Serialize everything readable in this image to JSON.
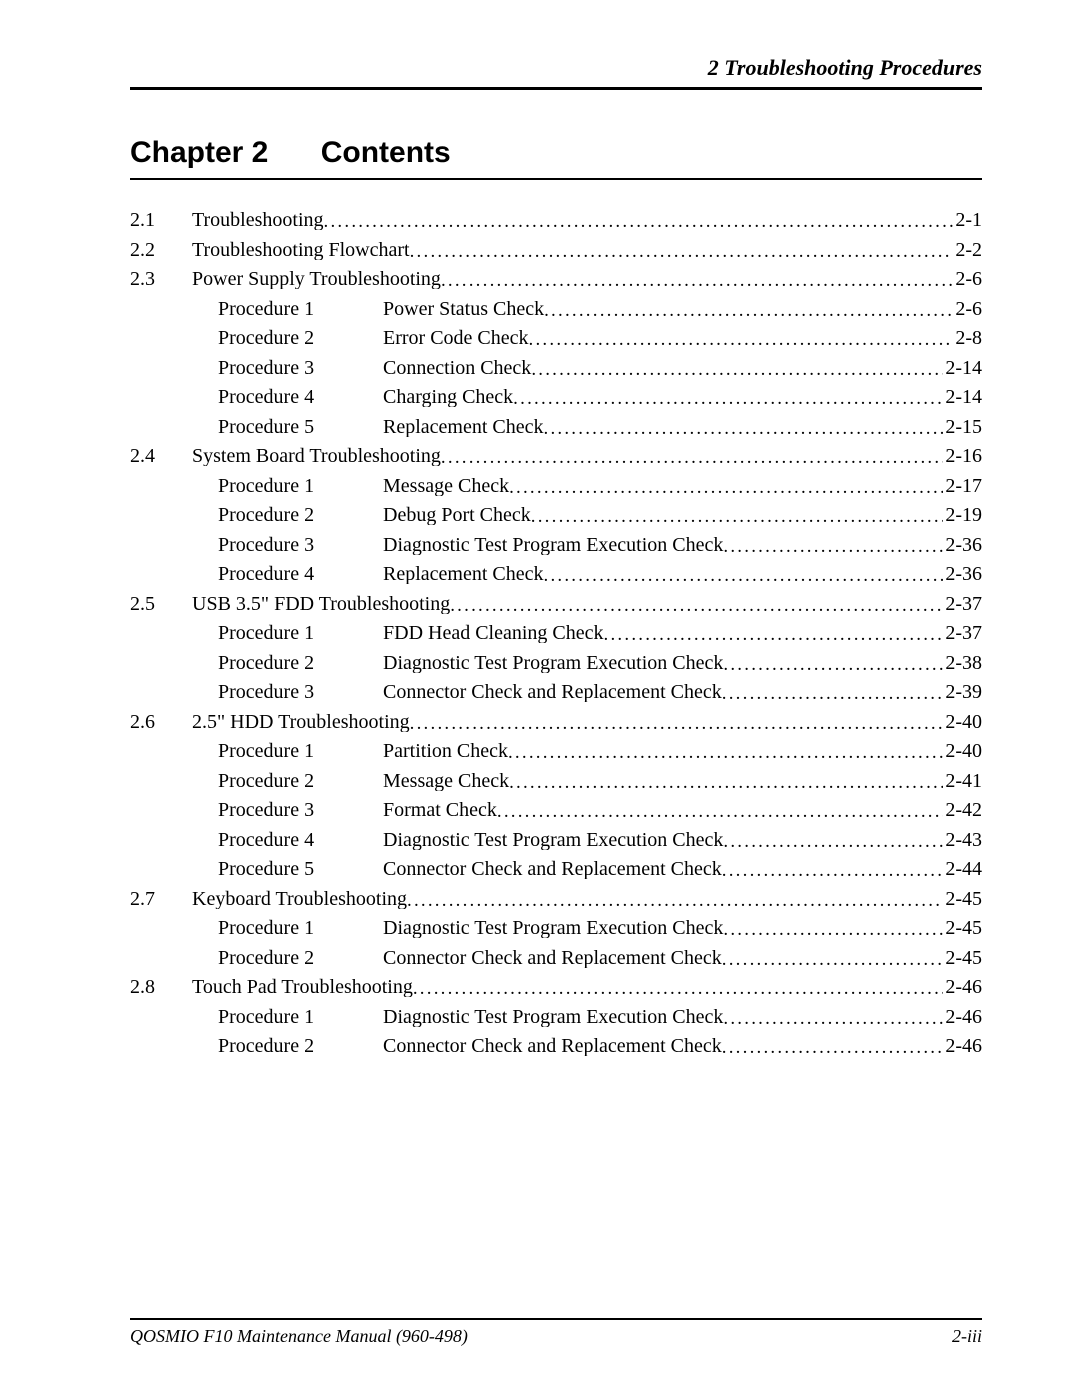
{
  "header_text": "2 Troubleshooting Procedures",
  "chapter_label": "Chapter 2",
  "contents_label": "Contents",
  "footer_left": "QOSMIO F10  Maintenance Manual (960-498)",
  "footer_right": "2-iii",
  "leader_dots": "........................................................................................................................................................",
  "toc": [
    {
      "type": "section",
      "num": "2.1",
      "title": "Troubleshooting",
      "page": "2-1"
    },
    {
      "type": "section",
      "num": "2.2",
      "title": "Troubleshooting Flowchart",
      "page": "2-2"
    },
    {
      "type": "section",
      "num": "2.3",
      "title": "Power Supply Troubleshooting",
      "page": "2-6"
    },
    {
      "type": "proc",
      "proc": "Procedure 1",
      "title": "Power Status Check",
      "page": "2-6"
    },
    {
      "type": "proc",
      "proc": "Procedure 2",
      "title": "Error Code Check",
      "page": "2-8"
    },
    {
      "type": "proc",
      "proc": "Procedure 3",
      "title": "Connection Check",
      "page": "2-14"
    },
    {
      "type": "proc",
      "proc": "Procedure 4",
      "title": "Charging Check",
      "page": "2-14"
    },
    {
      "type": "proc",
      "proc": "Procedure 5",
      "title": "Replacement Check",
      "page": "2-15"
    },
    {
      "type": "section",
      "num": "2.4",
      "title": "System Board Troubleshooting",
      "page": "2-16"
    },
    {
      "type": "proc",
      "proc": "Procedure 1",
      "title": "Message Check",
      "page": "2-17"
    },
    {
      "type": "proc",
      "proc": "Procedure 2",
      "title": "Debug Port Check",
      "page": "2-19"
    },
    {
      "type": "proc",
      "proc": "Procedure 3",
      "title": "Diagnostic Test Program Execution Check",
      "page": "2-36"
    },
    {
      "type": "proc",
      "proc": "Procedure 4",
      "title": "Replacement Check",
      "page": "2-36"
    },
    {
      "type": "section",
      "num": "2.5",
      "title": "USB 3.5\" FDD Troubleshooting",
      "page": "2-37"
    },
    {
      "type": "proc",
      "proc": "Procedure 1",
      "title": "FDD Head Cleaning Check",
      "page": "2-37"
    },
    {
      "type": "proc",
      "proc": "Procedure 2",
      "title": "Diagnostic Test Program Execution Check",
      "page": "2-38"
    },
    {
      "type": "proc",
      "proc": "Procedure 3",
      "title": "Connector Check and Replacement Check",
      "page": "2-39"
    },
    {
      "type": "section",
      "num": "2.6",
      "title": "2.5\" HDD Troubleshooting",
      "page": "2-40"
    },
    {
      "type": "proc",
      "proc": "Procedure 1",
      "title": "Partition Check",
      "page": "2-40"
    },
    {
      "type": "proc",
      "proc": "Procedure 2",
      "title": "Message Check",
      "page": "2-41"
    },
    {
      "type": "proc",
      "proc": "Procedure 3",
      "title": "Format Check",
      "page": "2-42"
    },
    {
      "type": "proc",
      "proc": "Procedure 4",
      "title": "Diagnostic Test Program Execution Check",
      "page": "2-43"
    },
    {
      "type": "proc",
      "proc": "Procedure 5",
      "title": "Connector Check and Replacement Check",
      "page": "2-44"
    },
    {
      "type": "section",
      "num": "2.7",
      "title": "Keyboard Troubleshooting",
      "page": "2-45"
    },
    {
      "type": "proc",
      "proc": "Procedure 1",
      "title": "Diagnostic Test Program Execution Check",
      "page": "2-45"
    },
    {
      "type": "proc",
      "proc": "Procedure 2",
      "title": "Connector Check and Replacement Check",
      "page": "2-45"
    },
    {
      "type": "section",
      "num": "2.8",
      "title": "Touch Pad Troubleshooting",
      "page": "2-46"
    },
    {
      "type": "proc",
      "proc": "Procedure 1",
      "title": "Diagnostic Test Program Execution Check",
      "page": "2-46"
    },
    {
      "type": "proc",
      "proc": "Procedure 2",
      "title": "Connector Check and Replacement Check",
      "page": "2-46"
    }
  ]
}
